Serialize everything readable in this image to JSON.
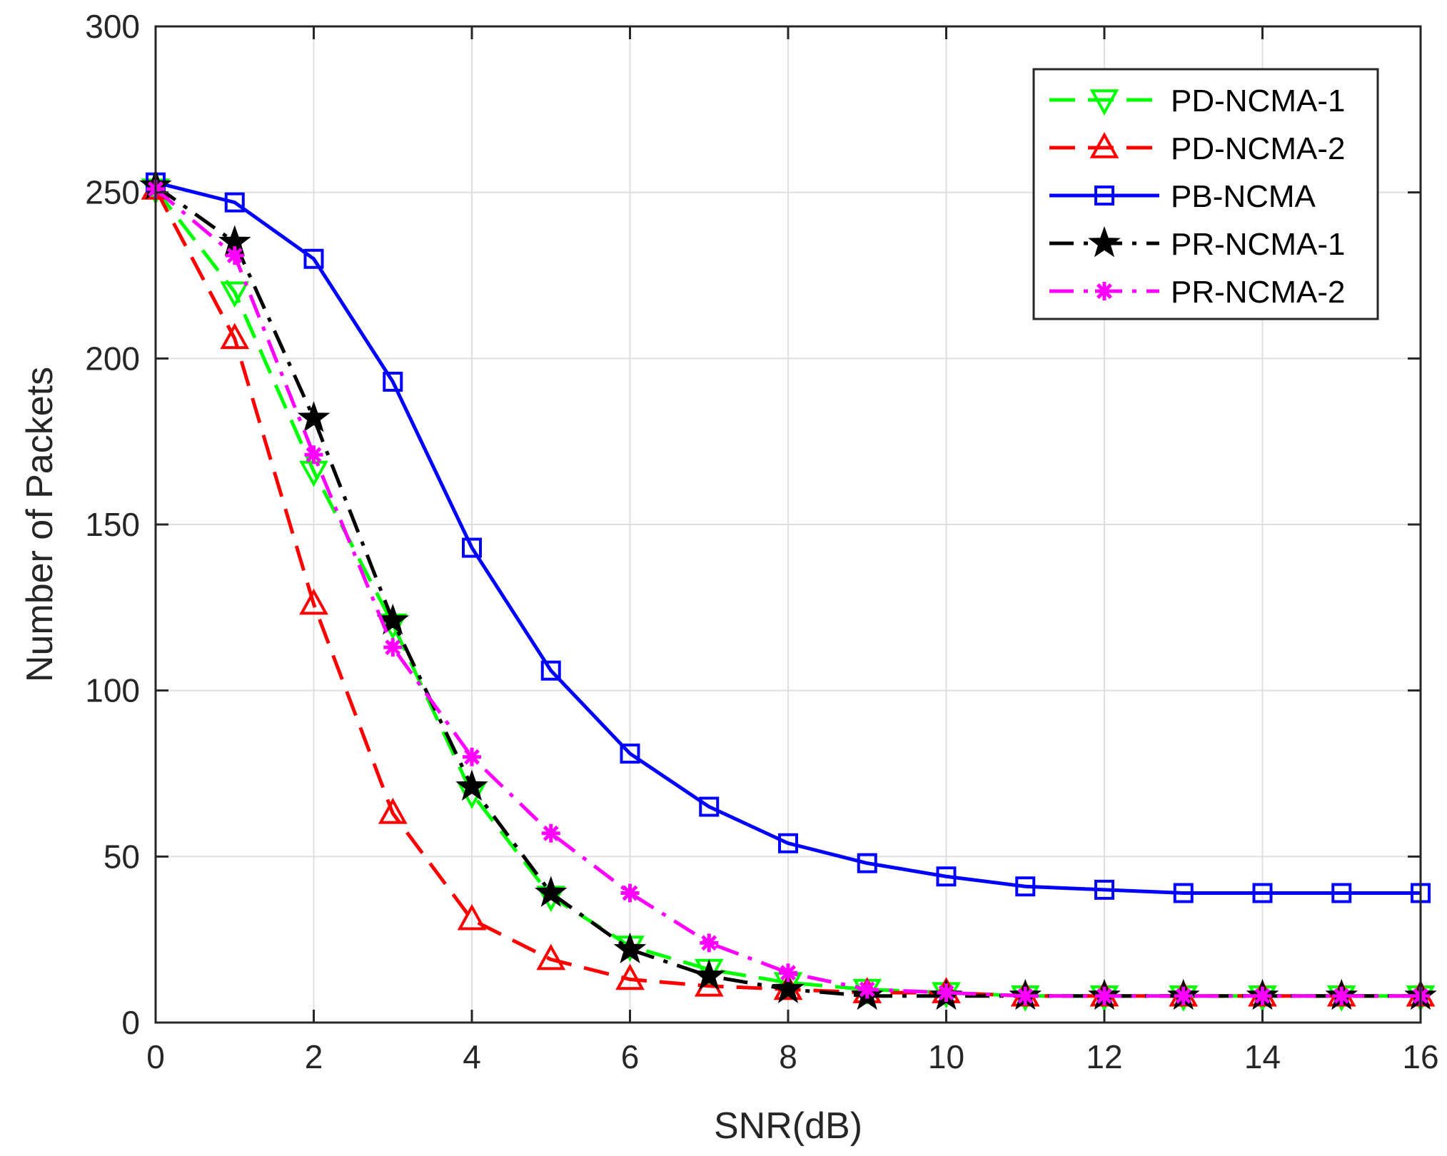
{
  "chart_data": {
    "type": "line",
    "xlabel": "SNR(dB)",
    "ylabel": "Number of Packets",
    "xlim": [
      0,
      16
    ],
    "ylim": [
      0,
      300
    ],
    "xticks": [
      "0",
      "2",
      "4",
      "6",
      "8",
      "10",
      "12",
      "14",
      "16"
    ],
    "yticks": [
      "0",
      "50",
      "100",
      "150",
      "200",
      "250",
      "300"
    ],
    "grid": true,
    "box": true,
    "legend_position": "top-right",
    "x": [
      0,
      1,
      2,
      3,
      4,
      5,
      6,
      7,
      8,
      9,
      10,
      11,
      12,
      13,
      14,
      15,
      16
    ],
    "series": [
      {
        "name": "PD-NCMA-1",
        "color": "#00ff00",
        "line_style": "dashed",
        "marker": "triangle-down",
        "values": [
          251,
          220,
          166,
          120,
          69,
          38,
          23,
          16,
          12,
          10,
          9,
          8,
          8,
          8,
          8,
          8,
          8
        ]
      },
      {
        "name": "PD-NCMA-2",
        "color": "#ff0000",
        "line_style": "dashed",
        "marker": "triangle-up",
        "values": [
          251,
          206,
          126,
          63,
          31,
          19,
          13,
          11,
          10,
          9,
          9,
          8,
          8,
          8,
          8,
          8,
          8
        ]
      },
      {
        "name": "PB-NCMA",
        "color": "#0000ff",
        "line_style": "solid",
        "marker": "square",
        "values": [
          253,
          247,
          230,
          193,
          143,
          106,
          81,
          65,
          54,
          48,
          44,
          41,
          40,
          39,
          39,
          39,
          39
        ]
      },
      {
        "name": "PR-NCMA-1",
        "color": "#000000",
        "line_style": "dashdot",
        "marker": "star",
        "values": [
          252,
          235,
          182,
          121,
          71,
          39,
          22,
          14,
          10,
          8,
          8,
          8,
          8,
          8,
          8,
          8,
          8
        ]
      },
      {
        "name": "PR-NCMA-2",
        "color": "#ff00ff",
        "line_style": "dashdot",
        "marker": "asterisk",
        "values": [
          251,
          231,
          171,
          113,
          80,
          57,
          39,
          24,
          15,
          10,
          9,
          8,
          8,
          8,
          8,
          8,
          8
        ]
      }
    ]
  }
}
